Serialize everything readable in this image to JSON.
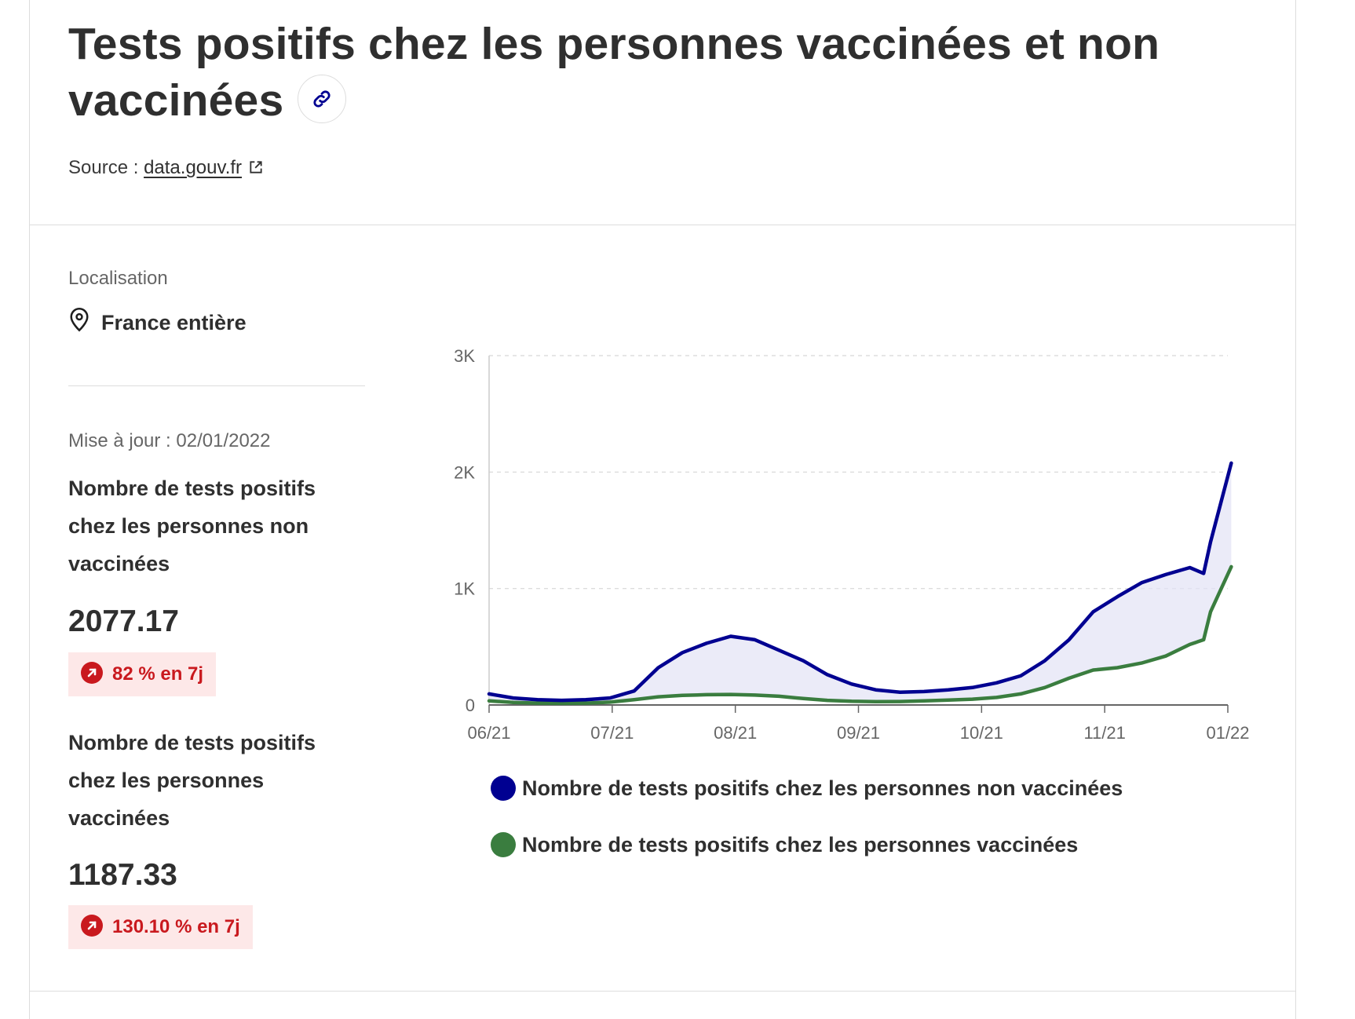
{
  "header": {
    "title": "Tests positifs chez les personnes vaccinées et non vaccinées",
    "source_prefix": "Source :",
    "source_link": "data.gouv.fr"
  },
  "sidebar": {
    "location_label": "Localisation",
    "location_value": "France entière",
    "update_text": "Mise à jour : 02/01/2022",
    "kpis": [
      {
        "label": "Nombre de tests positifs chez les personnes non vaccinées",
        "value": "2077.17",
        "trend": "82 % en 7j"
      },
      {
        "label": "Nombre de tests positifs chez les personnes vaccinées",
        "value": "1187.33",
        "trend": "130.10 % en 7j"
      }
    ]
  },
  "colors": {
    "unvaccinated": "#000091",
    "vaccinated": "#3a7d3f",
    "trend": "#c9191e",
    "area": "#e3e3f5"
  },
  "chart_data": {
    "type": "line",
    "x_ticks": [
      "06/21",
      "07/21",
      "08/21",
      "09/21",
      "10/21",
      "11/21",
      "01/22"
    ],
    "y_ticks": [
      "0",
      "1K",
      "2K",
      "3K"
    ],
    "ylim": [
      0,
      3000
    ],
    "x": [
      "2021-06-01",
      "2021-06-08",
      "2021-06-15",
      "2021-06-22",
      "2021-06-29",
      "2021-07-06",
      "2021-07-13",
      "2021-07-20",
      "2021-07-27",
      "2021-08-03",
      "2021-08-10",
      "2021-08-17",
      "2021-08-24",
      "2021-08-31",
      "2021-09-07",
      "2021-09-14",
      "2021-09-21",
      "2021-09-28",
      "2021-10-05",
      "2021-10-12",
      "2021-10-19",
      "2021-10-26",
      "2021-11-02",
      "2021-11-09",
      "2021-11-16",
      "2021-11-23",
      "2021-11-30",
      "2021-12-07",
      "2021-12-14",
      "2021-12-21",
      "2021-12-25",
      "2021-12-27",
      "2022-01-02"
    ],
    "series": [
      {
        "name": "Nombre de tests positifs chez les personnes non vaccinées",
        "values": [
          95,
          60,
          45,
          40,
          45,
          60,
          120,
          320,
          450,
          530,
          590,
          560,
          470,
          380,
          260,
          180,
          130,
          110,
          115,
          130,
          150,
          190,
          250,
          380,
          560,
          800,
          930,
          1050,
          1120,
          1180,
          1130,
          1400,
          2077
        ]
      },
      {
        "name": "Nombre de tests positifs chez les personnes vaccinées",
        "values": [
          35,
          22,
          16,
          14,
          16,
          24,
          45,
          70,
          82,
          88,
          90,
          85,
          75,
          55,
          40,
          32,
          28,
          30,
          35,
          42,
          50,
          65,
          95,
          150,
          230,
          300,
          320,
          360,
          420,
          520,
          560,
          800,
          1187
        ]
      }
    ]
  }
}
